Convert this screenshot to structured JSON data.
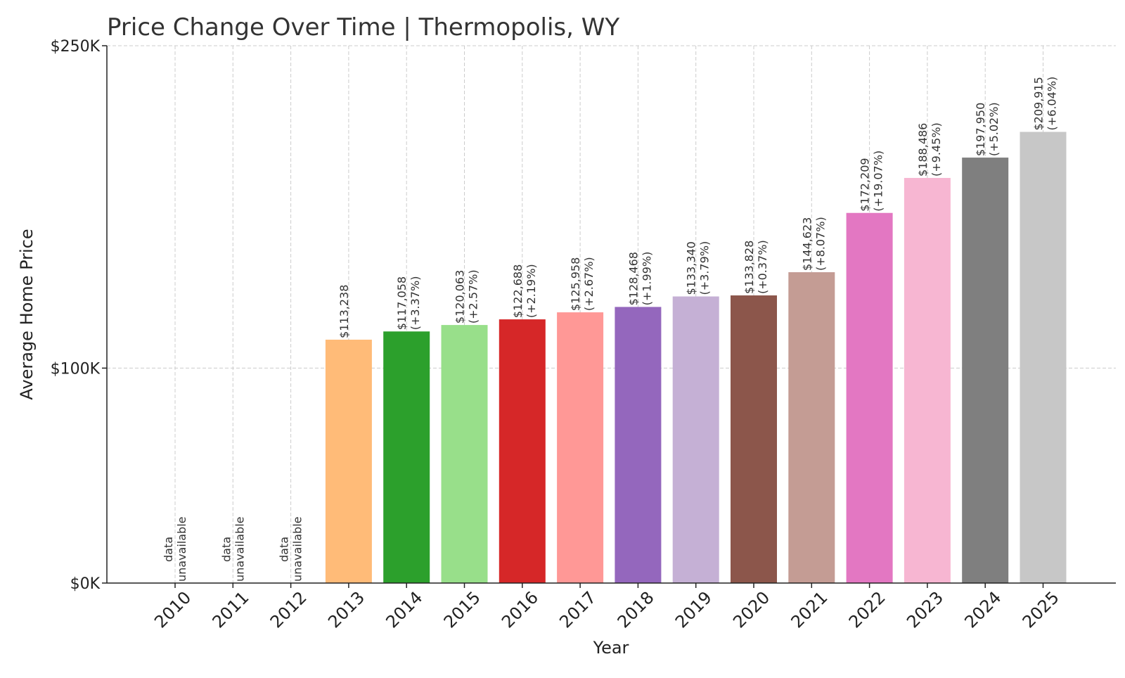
{
  "chart_data": {
    "type": "bar",
    "title": "Price Change Over Time | Thermopolis, WY",
    "xlabel": "Year",
    "ylabel": "Average Home Price",
    "ylim": [
      0,
      250000
    ],
    "yticks": [
      {
        "value": 0,
        "label": "$0K"
      },
      {
        "value": 100000,
        "label": "$100K"
      },
      {
        "value": 250000,
        "label": "$250K"
      }
    ],
    "grid": true,
    "categories": [
      "2010",
      "2011",
      "2012",
      "2013",
      "2014",
      "2015",
      "2016",
      "2017",
      "2018",
      "2019",
      "2020",
      "2021",
      "2022",
      "2023",
      "2024",
      "2025"
    ],
    "values": [
      null,
      null,
      null,
      113238,
      117058,
      120063,
      122688,
      125958,
      128468,
      133340,
      133828,
      144623,
      172209,
      188486,
      197950,
      209915
    ],
    "value_labels": [
      "",
      "",
      "",
      "$113,238",
      "$117,058",
      "$120,063",
      "$122,688",
      "$125,958",
      "$128,468",
      "$133,340",
      "$133,828",
      "$144,623",
      "$172,209",
      "$188,486",
      "$197,950",
      "$209,915"
    ],
    "change_labels": [
      "",
      "",
      "",
      "",
      "(+3.37%)",
      "(+2.57%)",
      "(+2.19%)",
      "(+2.67%)",
      "(+1.99%)",
      "(+3.79%)",
      "(+0.37%)",
      "(+8.07%)",
      "(+19.07%)",
      "(+9.45%)",
      "(+5.02%)",
      "(+6.04%)"
    ],
    "missing_label_lines": [
      "data",
      "unavailable"
    ],
    "colors": [
      "#1f77b4",
      "#ff7f0e",
      "#2ca02c",
      "#ffbb78",
      "#2ca02c",
      "#98df8a",
      "#d62728",
      "#ff9896",
      "#9467bd",
      "#c5b0d5",
      "#8c564b",
      "#c49c94",
      "#e377c2",
      "#f7b6d2",
      "#7f7f7f",
      "#c7c7c7"
    ]
  }
}
